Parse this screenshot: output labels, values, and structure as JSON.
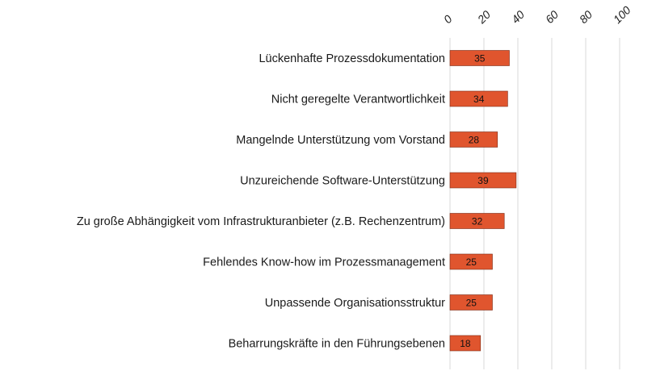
{
  "chart_data": {
    "type": "bar",
    "orientation": "horizontal",
    "categories": [
      "Lückenhafte Prozessdokumentation",
      "Nicht geregelte Verantwortlichkeit",
      "Mangelnde Unterstützung vom Vorstand",
      "Unzureichende Software-Unterstützung",
      "Zu große Abhängigkeit vom Infrastrukturanbieter (z.B. Rechenzentrum)",
      "Fehlendes Know-how im Prozessmanagement",
      "Unpassende Organisationsstruktur",
      "Beharrungskräfte in den Führungsebenen"
    ],
    "values": [
      35,
      34,
      28,
      39,
      32,
      25,
      25,
      18
    ],
    "xlim": [
      0,
      100
    ],
    "ticks": [
      0,
      20,
      40,
      60,
      80,
      100
    ],
    "tick_labels": [
      "0",
      "20",
      "40",
      "60",
      "80",
      "100"
    ],
    "axis_position": "top",
    "grid": true,
    "data_labels": true,
    "bar_color": "#e0552e",
    "bar_outline": "#7a2a14"
  }
}
